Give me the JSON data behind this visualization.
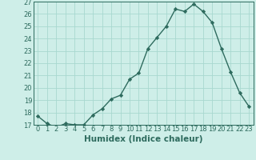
{
  "x": [
    0,
    1,
    2,
    3,
    4,
    5,
    6,
    7,
    8,
    9,
    10,
    11,
    12,
    13,
    14,
    15,
    16,
    17,
    18,
    19,
    20,
    21,
    22,
    23
  ],
  "y": [
    17.7,
    17.1,
    16.8,
    17.1,
    17.0,
    17.0,
    17.8,
    18.3,
    19.1,
    19.4,
    20.7,
    21.2,
    23.2,
    24.1,
    25.0,
    26.4,
    26.2,
    26.8,
    26.2,
    25.3,
    23.2,
    21.3,
    19.6,
    18.5
  ],
  "line_color": "#2e6b5e",
  "marker": "D",
  "marker_size": 2.2,
  "bg_color": "#ceeee8",
  "grid_color": "#a8d8d0",
  "xlabel": "Humidex (Indice chaleur)",
  "ylim": [
    17,
    27
  ],
  "yticks": [
    17,
    18,
    19,
    20,
    21,
    22,
    23,
    24,
    25,
    26,
    27
  ],
  "xticks": [
    0,
    1,
    2,
    3,
    4,
    5,
    6,
    7,
    8,
    9,
    10,
    11,
    12,
    13,
    14,
    15,
    16,
    17,
    18,
    19,
    20,
    21,
    22,
    23
  ],
  "tick_color": "#2e6b5e",
  "label_color": "#2e6b5e",
  "font_size": 6.0,
  "xlabel_fontsize": 7.5,
  "line_width": 1.0
}
